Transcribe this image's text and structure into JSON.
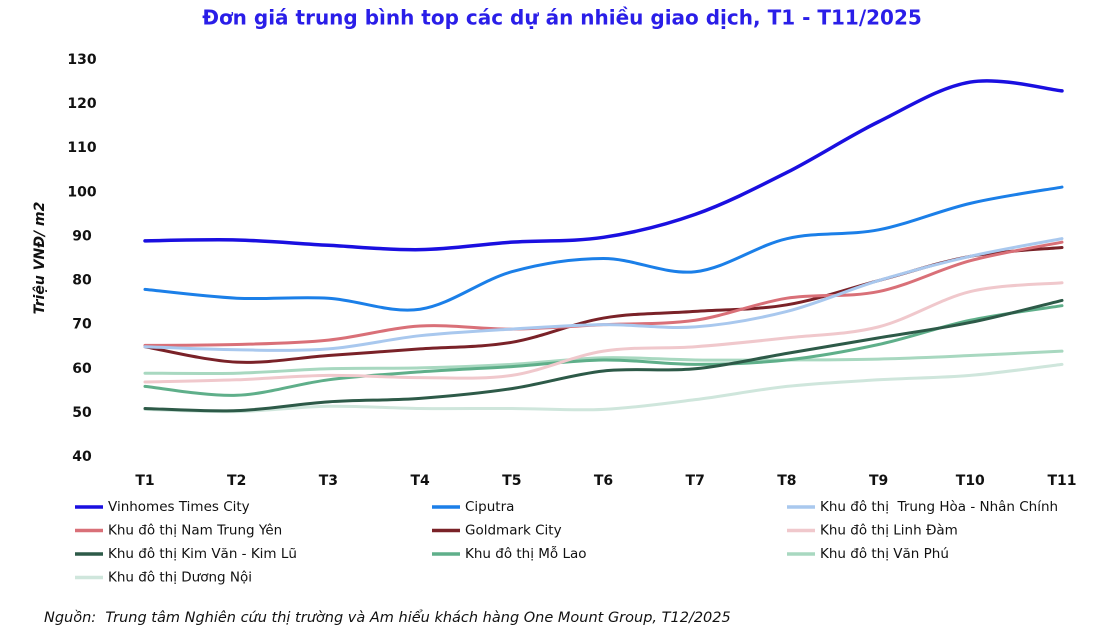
{
  "chart_data": {
    "type": "line",
    "title": "Đơn giá trung bình top các dự án nhiều giao dịch, T1 - T11/2025",
    "y_label": "Triệu VNĐ/ m2",
    "source": "Nguồn:  Trung tâm Nghiên cứu thị trường và Am hiểu khách hàng One Mount Group, T12/2025",
    "categories": [
      "T1",
      "T2",
      "T3",
      "T4",
      "T5",
      "T6",
      "T7",
      "T8",
      "T9",
      "T10",
      "T11"
    ],
    "ylim": [
      40,
      130
    ],
    "yticks": [
      40,
      50,
      60,
      70,
      80,
      90,
      100,
      110,
      120,
      130
    ],
    "series": [
      {
        "name": "Vinhomes Times City",
        "color": "#1a0fe0",
        "values": [
          89,
          89.2,
          88,
          87,
          88.7,
          89.8,
          95,
          104.5,
          116,
          125,
          123
        ]
      },
      {
        "name": "Ciputra",
        "color": "#1b7fe8",
        "values": [
          78,
          76,
          76,
          73.5,
          82,
          85,
          82,
          89.5,
          91.5,
          97.5,
          101.2
        ]
      },
      {
        "name": "Khu đô thị  Trung Hòa - Nhân Chính",
        "color": "#a9c8ee",
        "values": [
          65,
          64.3,
          64.5,
          67.5,
          69,
          70,
          69.5,
          73,
          80,
          85.5,
          89.5
        ]
      },
      {
        "name": "Khu đô thị Nam Trung Yên",
        "color": "#d97078",
        "values": [
          65.3,
          65.5,
          66.5,
          69.7,
          69,
          70,
          71,
          76,
          77.5,
          84.5,
          88.7
        ]
      },
      {
        "name": "Goldmark City",
        "color": "#7a2228",
        "values": [
          65,
          61.5,
          63,
          64.5,
          66,
          71.5,
          73,
          74.5,
          80,
          85.5,
          87.5
        ]
      },
      {
        "name": "Khu đô thị Linh Đàm",
        "color": "#f0c8cc",
        "values": [
          57,
          57.5,
          58.5,
          58,
          58.5,
          64,
          65,
          67,
          69.5,
          77.5,
          79.5
        ]
      },
      {
        "name": "Khu đô thị Kim Văn - Kim Lũ",
        "color": "#2d5a48",
        "values": [
          51,
          50.5,
          52.5,
          53.3,
          55.5,
          59.5,
          60,
          63.5,
          67,
          70.5,
          75.5
        ]
      },
      {
        "name": "Khu đô thị Mỗ Lao",
        "color": "#5faf8a",
        "values": [
          56,
          54,
          57.5,
          59.3,
          60.5,
          62,
          61,
          62,
          65.5,
          71,
          74.3
        ]
      },
      {
        "name": "Khu đô thị Văn Phú",
        "color": "#a8d8c0",
        "values": [
          59,
          59,
          60,
          60.2,
          61,
          62.5,
          62,
          62,
          62.2,
          63,
          64
        ]
      },
      {
        "name": "Khu đô thị Dương Nội",
        "color": "#cfe6dc",
        "values": [
          50.8,
          50.3,
          51.5,
          51,
          51,
          50.8,
          53,
          56,
          57.5,
          58.5,
          61
        ]
      }
    ]
  }
}
